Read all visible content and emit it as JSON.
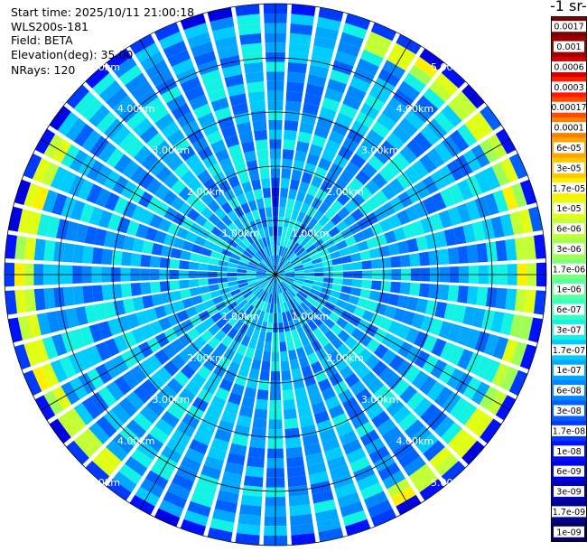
{
  "header": {
    "start_time": "Start time: 2025/10/11 21:00:18",
    "instrument": "WLS200s-181",
    "field": "Field: BETA",
    "elevation": "Elevation(deg): 35.00",
    "nrays": "NRays: 120"
  },
  "colorbar": {
    "unit_label": "-1 sr-",
    "levels": [
      "0.0017",
      "0.001",
      "0.0006",
      "0.0003",
      "0.00017",
      "0.0001",
      "6e-05",
      "3e-05",
      "1.7e-05",
      "1e-05",
      "6e-06",
      "3e-06",
      "1.7e-06",
      "1e-06",
      "6e-07",
      "3e-07",
      "1.7e-07",
      "1e-07",
      "6e-08",
      "3e-08",
      "1.7e-08",
      "1e-08",
      "6e-09",
      "3e-09",
      "1.7e-09",
      "1e-09"
    ],
    "colors": [
      "#800000",
      "#a00000",
      "#d40000",
      "#ff1a00",
      "#ff4a00",
      "#ff7f00",
      "#ffa500",
      "#ffc800",
      "#fff000",
      "#e1ff15",
      "#c2ff34",
      "#a0ff55",
      "#7cff7a",
      "#5affa0",
      "#36ffc2",
      "#12f2e5",
      "#00ccff",
      "#00a8ff",
      "#0086ff",
      "#0060ff",
      "#003aff",
      "#0010ff",
      "#0000e0",
      "#0000b4",
      "#00008c",
      "#000068"
    ]
  },
  "chart_data": {
    "type": "heatmap",
    "subtype": "polar-ppi",
    "field": "BETA",
    "elevation_deg": 35.0,
    "n_rays": 120,
    "max_range_km": 5.0,
    "range_rings_km": [
      1,
      2,
      3,
      4,
      5
    ],
    "ring_labels": [
      "1.00km",
      "2.00km",
      "3.00km",
      "4.00km",
      "5.00km"
    ],
    "radial_lines_deg_step": 30,
    "rays_drawn": 60,
    "gates_per_ray": 28,
    "dominant_value": "1e-07",
    "enhanced_band": {
      "range_km": [
        4.4,
        4.75
      ],
      "value": "1.7e-05",
      "sectors_deg": [
        [
          20,
          150
        ],
        [
          220,
          300
        ]
      ]
    },
    "low_sector": {
      "azimuth_deg": [
        -5,
        5
      ],
      "range_km": [
        0.2,
        1.8
      ],
      "value": "6e-09"
    }
  }
}
